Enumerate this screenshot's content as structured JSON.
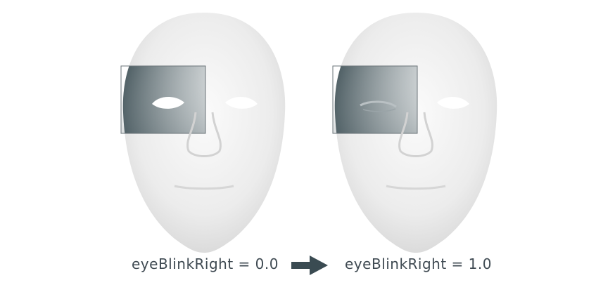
{
  "labels": {
    "before": "eyeBlinkRight = 0.0",
    "after": "eyeBlinkRight = 1.0"
  },
  "blendshape": {
    "name": "eyeBlinkRight",
    "before_value": 0.0,
    "after_value": 1.0
  },
  "colors": {
    "highlight_dark": "#3d4f55",
    "arrow": "#3a4b52",
    "label_text": "#3f4a52",
    "face_shade": "#e6e6e6"
  }
}
